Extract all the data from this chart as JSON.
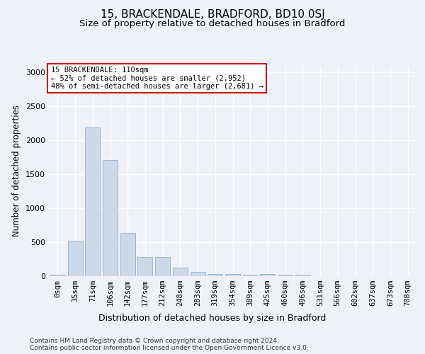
{
  "title1": "15, BRACKENDALE, BRADFORD, BD10 0SJ",
  "title2": "Size of property relative to detached houses in Bradford",
  "xlabel": "Distribution of detached houses by size in Bradford",
  "ylabel": "Number of detached properties",
  "categories": [
    "0sqm",
    "35sqm",
    "71sqm",
    "106sqm",
    "142sqm",
    "177sqm",
    "212sqm",
    "248sqm",
    "283sqm",
    "319sqm",
    "354sqm",
    "389sqm",
    "425sqm",
    "460sqm",
    "496sqm",
    "531sqm",
    "566sqm",
    "602sqm",
    "637sqm",
    "673sqm",
    "708sqm"
  ],
  "values": [
    25,
    520,
    2190,
    1710,
    635,
    280,
    280,
    120,
    65,
    35,
    30,
    25,
    30,
    20,
    20,
    0,
    0,
    0,
    0,
    0,
    0
  ],
  "bar_color": "#ccd9e8",
  "bar_edge_color": "#7fa8cc",
  "annotation_title": "15 BRACKENDALE: 110sqm",
  "annotation_line1": "← 52% of detached houses are smaller (2,952)",
  "annotation_line2": "48% of semi-detached houses are larger (2,681) →",
  "annotation_box_color": "#ffffff",
  "annotation_box_edge_color": "#cc0000",
  "footer1": "Contains HM Land Registry data © Crown copyright and database right 2024.",
  "footer2": "Contains public sector information licensed under the Open Government Licence v3.0.",
  "ylim": [
    0,
    3100
  ],
  "background_color": "#eef2f8",
  "grid_color": "#ffffff",
  "title1_fontsize": 11,
  "title2_fontsize": 9.5,
  "tick_fontsize": 7.5,
  "ylabel_fontsize": 8.5,
  "xlabel_fontsize": 9,
  "footer_fontsize": 6.5
}
